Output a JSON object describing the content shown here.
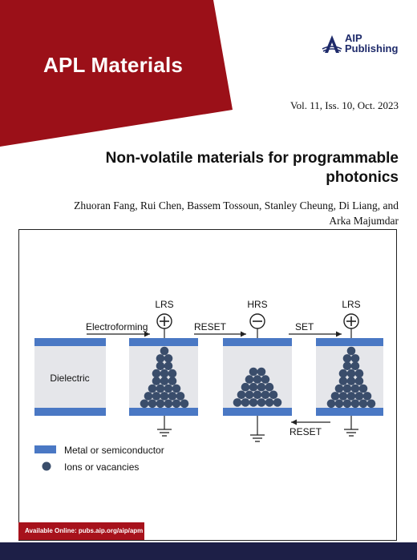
{
  "cover": {
    "journal_title": "APL Materials",
    "publisher_line1": "AIP",
    "publisher_line2": "Publishing",
    "issue": "Vol. 11, Iss. 10, Oct. 2023",
    "article_title": "Non-volatile materials for programmable photonics",
    "authors": "Zhuoran Fang, Rui Chen, Bassem Tossoun, Stanley Cheung, Di Liang, and Arka Majumdar",
    "availability": "Available Online: pubs.aip.org/aip/apm"
  },
  "colors": {
    "banner": "#9b1018",
    "publisher_blue": "#1e2a6a",
    "electrode": "#4a78c4",
    "dielectric": "#e5e6ea",
    "ion": "#3a4d6b",
    "footer": "#1d1f47"
  },
  "figure": {
    "dielectric_label": "Dielectric",
    "states": [
      "LRS",
      "HRS",
      "LRS"
    ],
    "signs": [
      "+",
      "−",
      "+"
    ],
    "arrows": {
      "electroforming": "Electroforming",
      "reset": "RESET",
      "set": "SET",
      "reset_back": "RESET"
    },
    "legend": {
      "metal": "Metal or semiconductor",
      "ions": "Ions or vacancies"
    }
  }
}
